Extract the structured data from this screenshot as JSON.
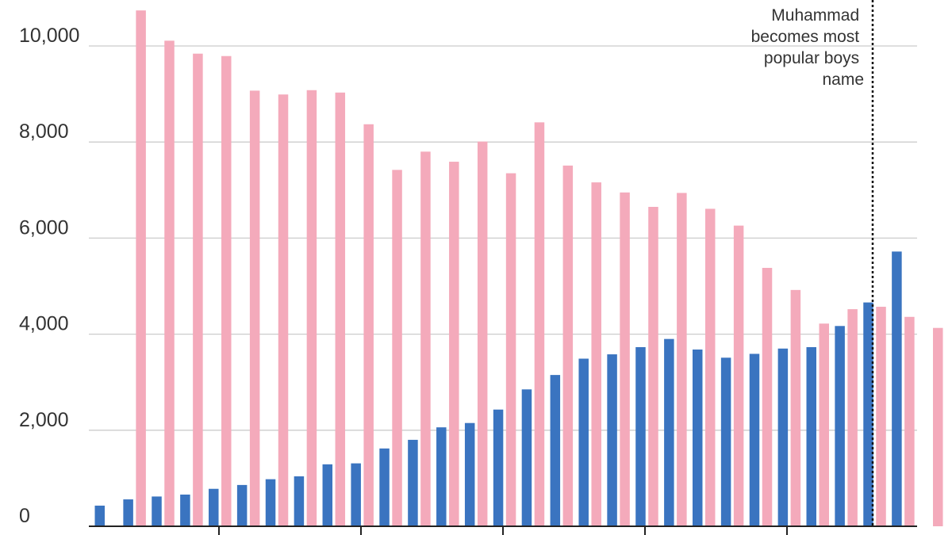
{
  "chart_data": {
    "type": "bar",
    "categories": [
      "",
      "",
      "",
      "",
      "",
      "",
      "",
      "",
      "",
      "",
      "",
      "",
      "",
      "",
      "",
      "",
      "",
      "",
      "",
      "",
      "",
      "",
      "",
      "",
      "",
      "",
      "",
      "",
      "",
      ""
    ],
    "series": [
      {
        "color": "#3a74c0",
        "values": [
          430,
          560,
          620,
          660,
          780,
          860,
          980,
          1040,
          1290,
          1310,
          1620,
          1800,
          2060,
          2150,
          2430,
          2850,
          3150,
          3490,
          3580,
          3730,
          3900,
          3680,
          3510,
          3590,
          3700,
          3730,
          4170,
          4660,
          5720,
          0
        ]
      },
      {
        "color": "#f4aabb",
        "values": [
          0,
          10740,
          10110,
          9840,
          9790,
          9070,
          8990,
          9080,
          9030,
          8370,
          7420,
          7800,
          7590,
          8010,
          7350,
          8410,
          7510,
          7160,
          6950,
          6650,
          6940,
          6610,
          6260,
          5380,
          4920,
          4220,
          4520,
          4570,
          4360,
          4130
        ]
      }
    ],
    "ylim": [
      0,
      10800
    ],
    "yticks": [
      "0",
      "2,000",
      "4,000",
      "6,000",
      "8,000",
      "10,000"
    ],
    "grid": true,
    "annotation": {
      "lines": [
        "Muhammad",
        "becomes most",
        "popular boys",
        "name"
      ]
    }
  }
}
